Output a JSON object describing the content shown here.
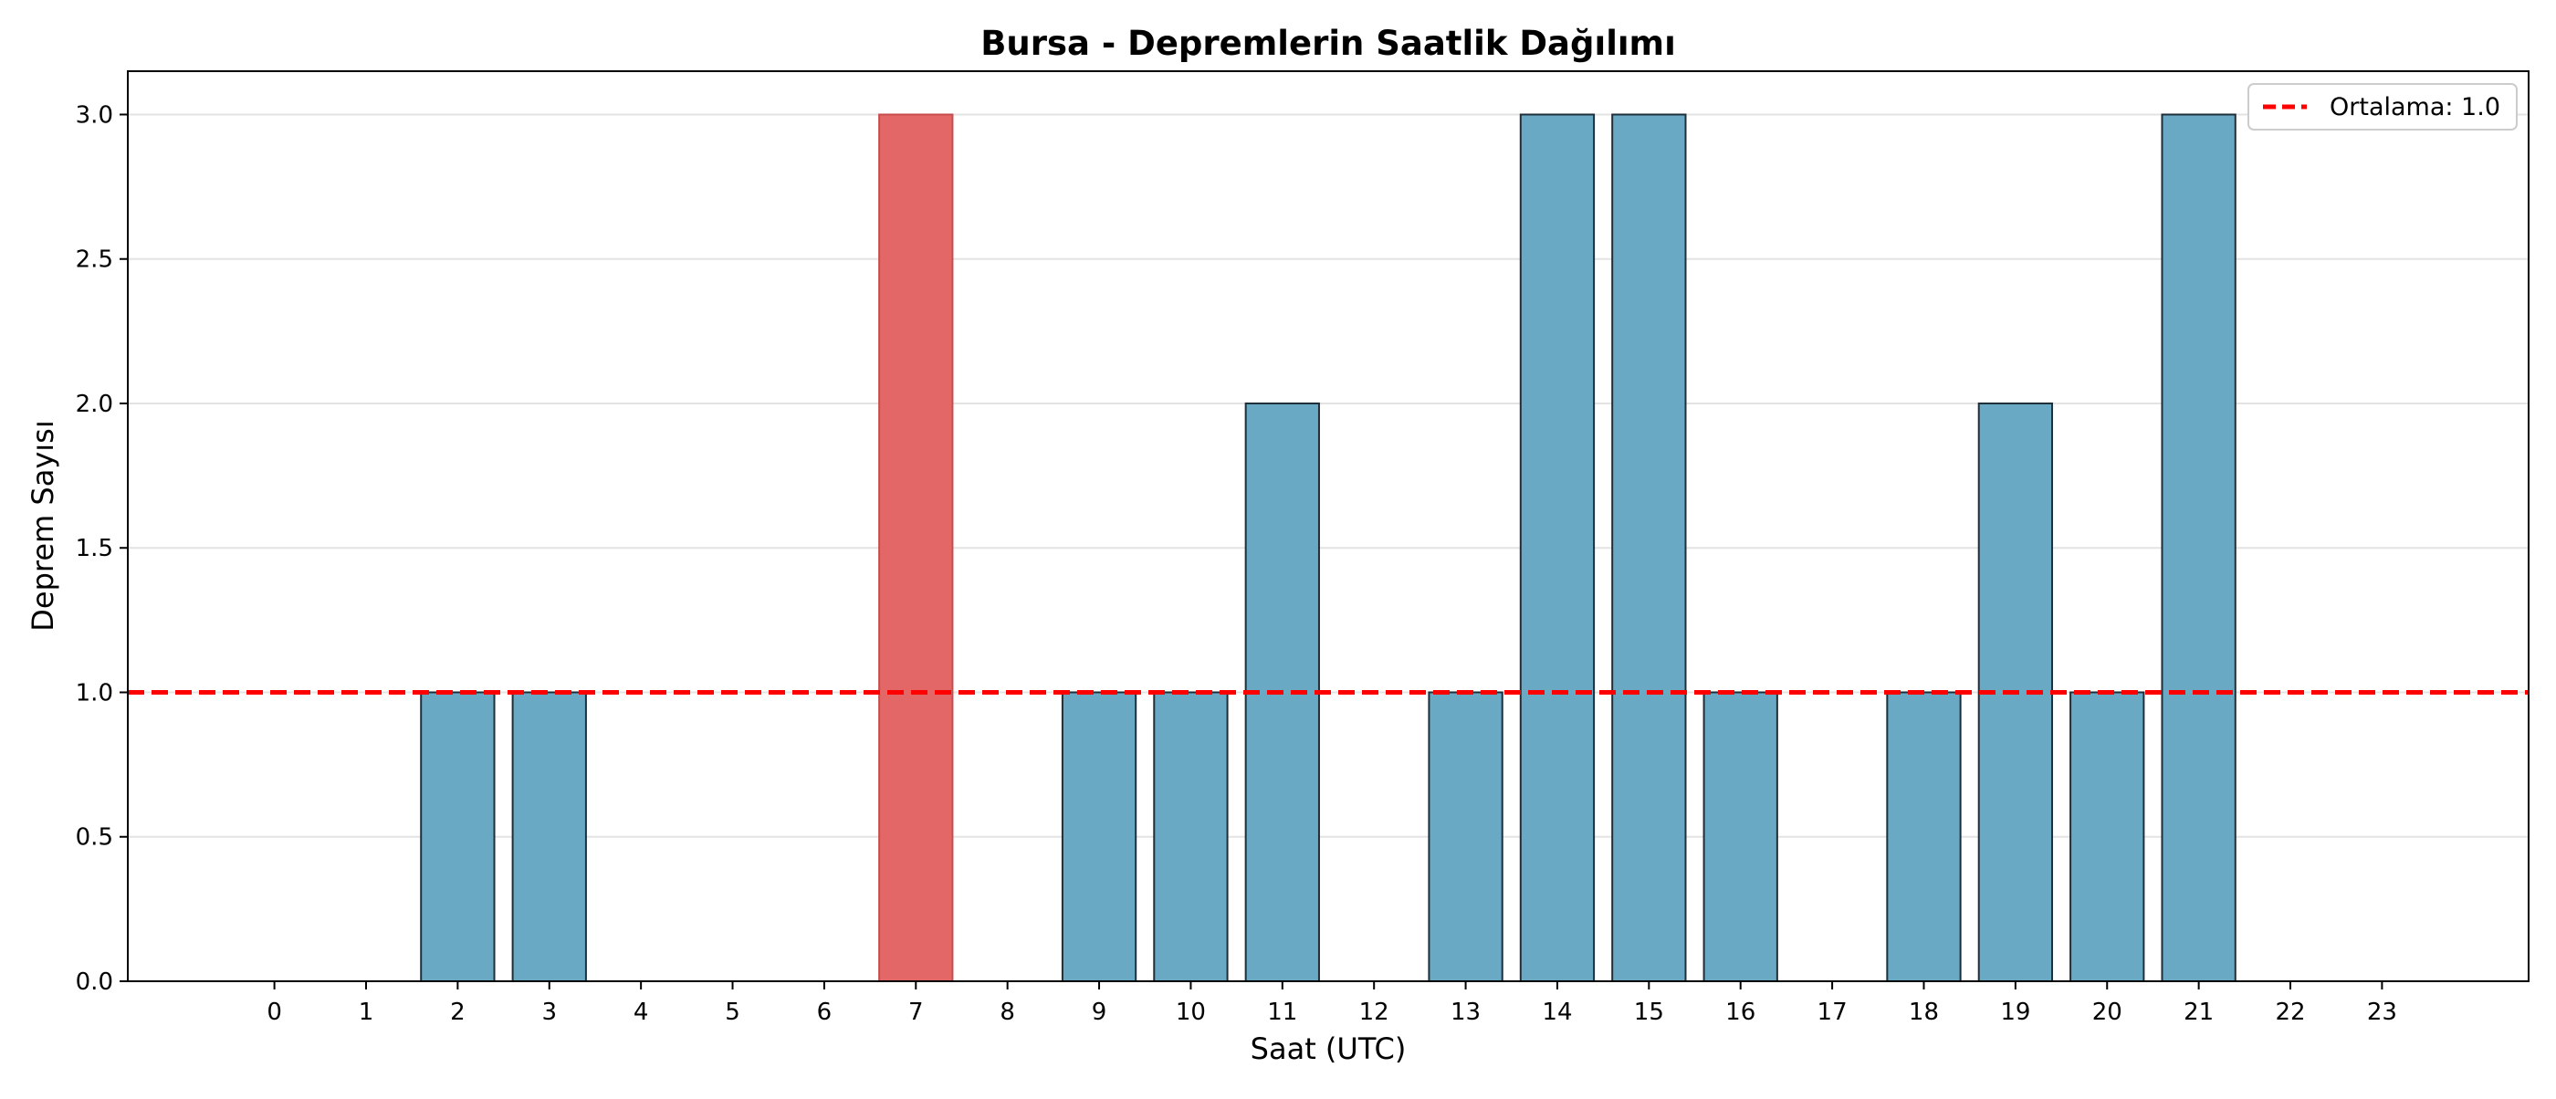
{
  "chart_data": {
    "type": "bar",
    "title": "Bursa - Depremlerin Saatlik Dağılımı",
    "xlabel": "Saat (UTC)",
    "ylabel": "Deprem Sayısı",
    "categories": [
      "0",
      "1",
      "2",
      "3",
      "4",
      "5",
      "6",
      "7",
      "8",
      "9",
      "10",
      "11",
      "12",
      "13",
      "14",
      "15",
      "16",
      "17",
      "18",
      "19",
      "20",
      "21",
      "22",
      "23"
    ],
    "values": [
      0,
      0,
      1,
      1,
      0,
      0,
      0,
      3,
      0,
      1,
      1,
      2,
      0,
      1,
      3,
      3,
      1,
      0,
      1,
      2,
      1,
      3,
      0,
      0
    ],
    "highlight_index": 7,
    "ylim": [
      0,
      3.15
    ],
    "xlim": [
      -1.6,
      24.6
    ],
    "yticks": [
      0.0,
      0.5,
      1.0,
      1.5,
      2.0,
      2.5,
      3.0
    ],
    "ytick_labels": [
      "0.0",
      "0.5",
      "1.0",
      "1.5",
      "2.0",
      "2.5",
      "3.0"
    ],
    "grid": "y",
    "mean_line": {
      "value": 1.0,
      "label": "Ortalama: 1.0",
      "color": "#ff0000"
    },
    "legend_position": "top-right",
    "colors": {
      "bar": "#6aa9c4",
      "bar_edge": "#1f2f3a",
      "highlight": "#e36767",
      "highlight_edge": "#c94c4c"
    }
  }
}
